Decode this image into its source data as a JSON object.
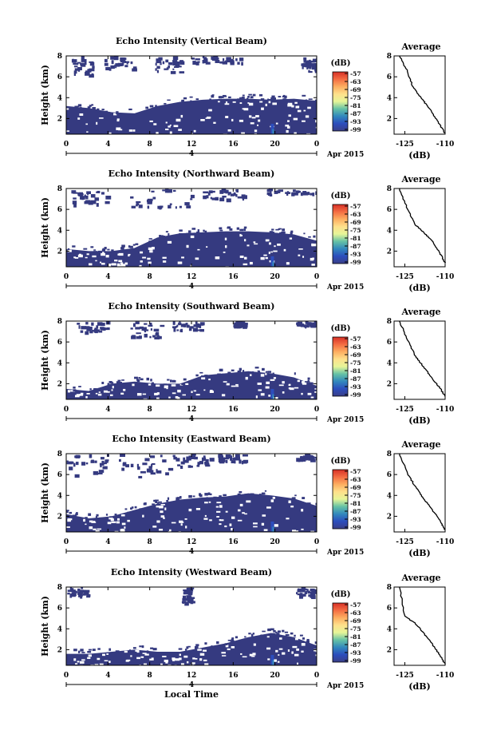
{
  "figure": {
    "x_label": "Local Time",
    "date_label": "Apr 2015",
    "date_day_tick": "4",
    "x_ticks": [
      "0",
      "4",
      "8",
      "12",
      "16",
      "20",
      "0"
    ],
    "y_label": "Height (km)",
    "y_ticks": [
      "2",
      "4",
      "6",
      "8"
    ],
    "colorbar_unit": "(dB)",
    "colorbar_ticks": [
      "-57",
      "-63",
      "-69",
      "-75",
      "-81",
      "-87",
      "-93",
      "-99"
    ],
    "colorbar_colors": [
      "#d73027",
      "#f46d43",
      "#fdae61",
      "#fee08b",
      "#e6f598",
      "#66c2a5",
      "#3288bd",
      "#2c4dbd",
      "#3a3f88"
    ],
    "avg_title": "Average",
    "avg_x_ticks": [
      "-125",
      "-110"
    ],
    "avg_x_label": "(dB)",
    "avg_y_ticks": [
      "2",
      "4",
      "6",
      "8"
    ]
  },
  "chart_data": [
    {
      "type": "heatmap",
      "title": "Echo Intensity (Vertical Beam)",
      "xlabel": "",
      "ylabel": "Height (km)",
      "xlim": [
        0,
        24
      ],
      "ylim": [
        0.5,
        8
      ],
      "base_km": [
        3.2,
        3.0,
        2.6,
        2.5,
        3.2,
        3.6,
        3.8,
        3.9,
        3.9,
        3.8,
        3.9,
        3.7
      ],
      "upper_patches": [
        [
          0.5,
          2.5,
          6.2,
          8
        ],
        [
          3.5,
          6.5,
          6.8,
          8
        ],
        [
          8.5,
          11,
          6.5,
          8
        ],
        [
          12,
          17,
          7.4,
          8
        ],
        [
          22.5,
          24,
          6.5,
          8
        ]
      ],
      "average": {
        "x": [
          -127,
          -124,
          -122,
          -119,
          -116,
          -113,
          -110
        ],
        "y": [
          8,
          6.5,
          5,
          4,
          3,
          1.8,
          0.6
        ]
      }
    },
    {
      "type": "heatmap",
      "title": "Echo Intensity (Northward Beam)",
      "xlabel": "",
      "ylabel": "Height (km)",
      "xlim": [
        0,
        24
      ],
      "ylim": [
        0.5,
        8
      ],
      "base_km": [
        2.2,
        2.0,
        2.0,
        2.3,
        3.3,
        3.7,
        3.8,
        3.9,
        3.9,
        3.8,
        3.6,
        3.0
      ],
      "upper_patches": [
        [
          0,
          4,
          6.5,
          8
        ],
        [
          6,
          12,
          6.2,
          8
        ],
        [
          13,
          17,
          7,
          8
        ],
        [
          19,
          24,
          7.5,
          8
        ]
      ],
      "average": {
        "x": [
          -127,
          -124,
          -121,
          -118,
          -115,
          -112,
          -110
        ],
        "y": [
          8,
          6,
          4.5,
          3.8,
          3,
          1.8,
          0.9
        ]
      }
    },
    {
      "type": "heatmap",
      "title": "Echo Intensity (Southward Beam)",
      "xlabel": "",
      "ylabel": "Height (km)",
      "xlim": [
        0,
        24
      ],
      "ylim": [
        0.5,
        8
      ],
      "base_km": [
        1.5,
        1.3,
        2.0,
        2.2,
        2.0,
        2.0,
        2.8,
        3.0,
        3.2,
        3.0,
        2.6,
        1.8
      ],
      "upper_patches": [
        [
          1,
          4,
          7,
          8
        ],
        [
          6,
          9,
          6.5,
          8
        ],
        [
          10,
          13,
          7.2,
          8
        ],
        [
          16,
          17,
          7.5,
          8
        ],
        [
          22,
          24,
          7.6,
          8
        ]
      ],
      "average": {
        "x": [
          -127,
          -124,
          -121,
          -118,
          -115,
          -112,
          -110
        ],
        "y": [
          8,
          6.2,
          4.6,
          3.6,
          2.6,
          1.6,
          0.8
        ]
      }
    },
    {
      "type": "heatmap",
      "title": "Echo Intensity (Eastward Beam)",
      "xlabel": "",
      "ylabel": "Height (km)",
      "xlim": [
        0,
        24
      ],
      "ylim": [
        0.5,
        8
      ],
      "base_km": [
        2.2,
        1.8,
        2.0,
        2.6,
        3.2,
        3.6,
        3.8,
        3.9,
        4.2,
        4.0,
        3.7,
        3.0
      ],
      "upper_patches": [
        [
          0,
          4,
          6,
          8
        ],
        [
          5,
          10,
          5.8,
          8
        ],
        [
          10,
          14,
          6.8,
          8
        ],
        [
          14.5,
          17,
          7.3,
          8
        ],
        [
          22,
          24,
          7.5,
          8
        ]
      ],
      "average": {
        "x": [
          -127,
          -124,
          -121,
          -118,
          -115,
          -112,
          -110
        ],
        "y": [
          8,
          6.1,
          4.8,
          3.7,
          2.7,
          1.6,
          0.7
        ]
      }
    },
    {
      "type": "heatmap",
      "title": "Echo Intensity (Westward Beam)",
      "xlabel": "Local Time",
      "ylabel": "Height (km)",
      "xlim": [
        0,
        24
      ],
      "ylim": [
        0.5,
        8
      ],
      "base_km": [
        1.6,
        1.6,
        1.8,
        2.0,
        1.8,
        1.8,
        2.2,
        2.6,
        3.2,
        3.6,
        3.2,
        2.4
      ],
      "upper_patches": [
        [
          0,
          2,
          7.2,
          8
        ],
        [
          11,
          12,
          6.5,
          8
        ],
        [
          22,
          24,
          7.2,
          8
        ]
      ],
      "average": {
        "x": [
          -127,
          -125,
          -121,
          -118,
          -115,
          -112,
          -110
        ],
        "y": [
          8,
          5.2,
          4.5,
          3.6,
          2.6,
          1.5,
          0.6
        ]
      }
    }
  ]
}
